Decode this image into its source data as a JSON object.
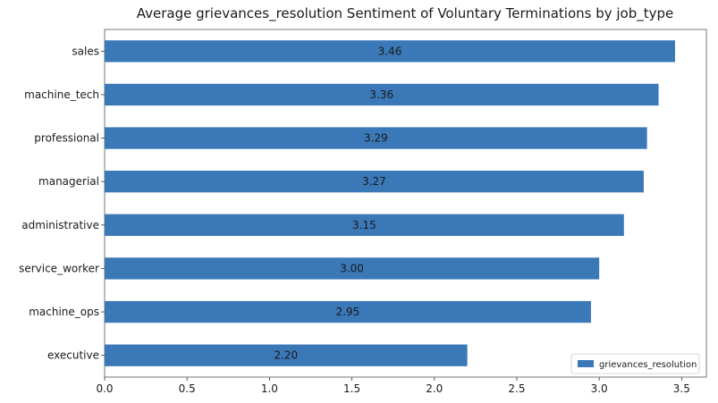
{
  "chart_data": {
    "type": "bar",
    "orientation": "horizontal",
    "title": "Average grievances_resolution Sentiment of Voluntary Terminations by job_type",
    "xlabel": "",
    "ylabel": "",
    "categories": [
      "sales",
      "machine_tech",
      "professional",
      "managerial",
      "administrative",
      "service_worker",
      "machine_ops",
      "executive"
    ],
    "series": [
      {
        "name": "grievances_resolution",
        "values": [
          3.46,
          3.36,
          3.29,
          3.27,
          3.15,
          3.0,
          2.95,
          2.2
        ],
        "value_labels": [
          "3.46",
          "3.36",
          "3.29",
          "3.27",
          "3.15",
          "3.00",
          "2.95",
          "2.20"
        ],
        "color": "#3a78b7"
      }
    ],
    "xlim": [
      0,
      3.65
    ],
    "xticks": [
      0.0,
      0.5,
      1.0,
      1.5,
      2.0,
      2.5,
      3.0,
      3.5
    ],
    "xtick_labels": [
      "0.0",
      "0.5",
      "1.0",
      "1.5",
      "2.0",
      "2.5",
      "3.0",
      "3.5"
    ],
    "grid": false,
    "legend": {
      "position": "bottom-right"
    }
  }
}
